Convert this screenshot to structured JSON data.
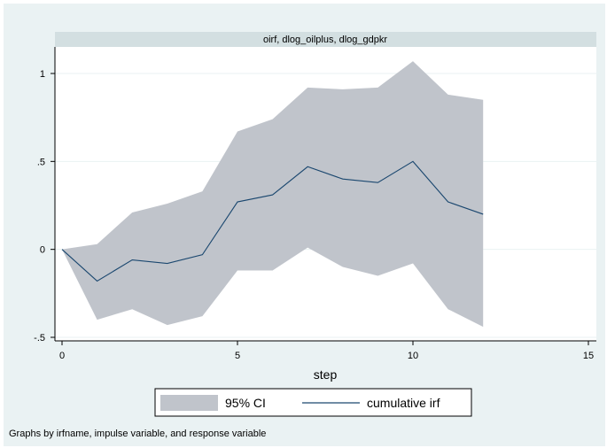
{
  "chart_data": {
    "type": "area",
    "title": "oirf, dlog_oilplus, dlog_gdpkr",
    "xlabel": "step",
    "ylabel": "",
    "xlim": [
      0,
      15
    ],
    "ylim": [
      -0.5,
      1.05
    ],
    "xticks": [
      0,
      5,
      10,
      15
    ],
    "xtick_labels": [
      "0",
      "5",
      "10",
      "15"
    ],
    "yticks": [
      -0.5,
      0,
      0.5,
      1
    ],
    "ytick_labels": [
      "-.5",
      "0",
      ".5",
      "1"
    ],
    "grid": true,
    "legend_position": "bottom",
    "x": [
      0,
      1,
      2,
      3,
      4,
      5,
      6,
      7,
      8,
      9,
      10,
      11,
      12
    ],
    "series": [
      {
        "name": "95% CI",
        "kind": "band",
        "color": "#c0c4cb",
        "lower": [
          0,
          -0.4,
          -0.34,
          -0.43,
          -0.38,
          -0.12,
          -0.12,
          0.01,
          -0.1,
          -0.15,
          -0.08,
          -0.34,
          -0.44
        ],
        "upper": [
          0,
          0.03,
          0.21,
          0.26,
          0.33,
          0.67,
          0.74,
          0.92,
          0.91,
          0.92,
          1.07,
          0.88,
          0.85
        ]
      },
      {
        "name": "cumulative irf",
        "kind": "line",
        "color": "#1a476f",
        "values": [
          0,
          -0.18,
          -0.06,
          -0.08,
          -0.03,
          0.27,
          0.31,
          0.47,
          0.4,
          0.38,
          0.5,
          0.27,
          0.2
        ]
      }
    ],
    "note": "Graphs by irfname, impulse variable, and response variable"
  }
}
